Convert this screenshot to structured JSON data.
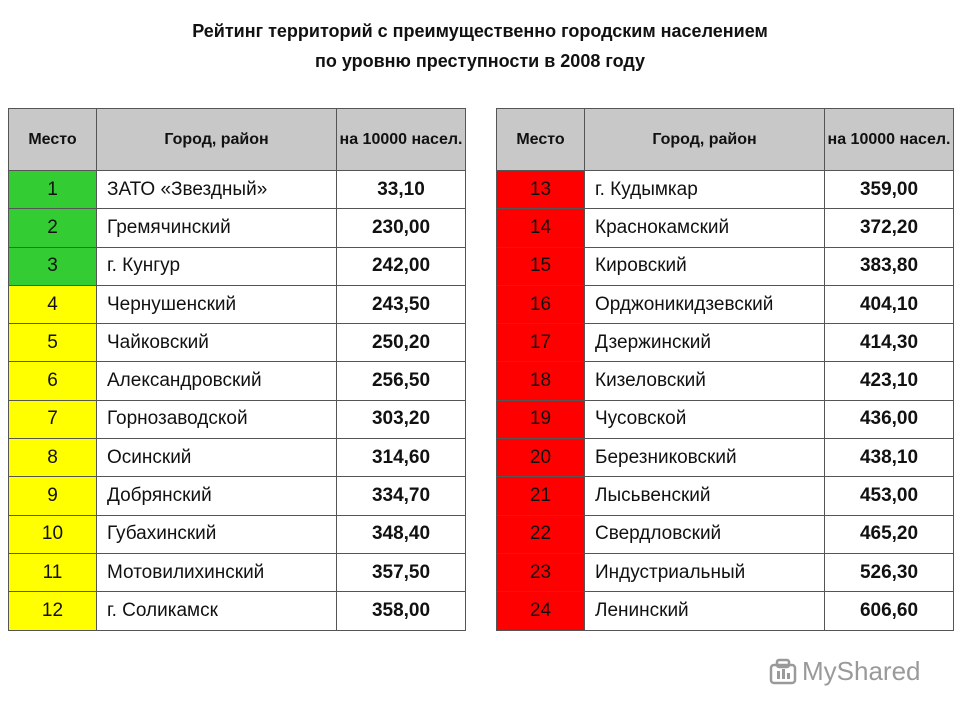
{
  "header": {
    "title_lines": [
      "Рейтинг территорий с преимущественно городским населением",
      "по уровню преступности в 2008 году"
    ]
  },
  "tables": [
    {
      "columns": [
        "Место",
        "Город, район",
        "на 10000 насел."
      ],
      "row_colors": [
        "#33cc33",
        "#33cc33",
        "#33cc33",
        "#ffff00",
        "#ffff00",
        "#ffff00",
        "#ffff00",
        "#ffff00",
        "#ffff00",
        "#ffff00",
        "#ffff00",
        "#ffff00"
      ],
      "rows": [
        [
          "1",
          "ЗАТО «Звездный»",
          "33,10"
        ],
        [
          "2",
          "Гремячинский",
          "230,00"
        ],
        [
          "3",
          "г. Кунгур",
          "242,00"
        ],
        [
          "4",
          "Чернушенский",
          "243,50"
        ],
        [
          "5",
          "Чайковский",
          "250,20"
        ],
        [
          "6",
          "Александровский",
          "256,50"
        ],
        [
          "7",
          "Горнозаводской",
          "303,20"
        ],
        [
          "8",
          "Осинский",
          "314,60"
        ],
        [
          "9",
          "Добрянский",
          "334,70"
        ],
        [
          "10",
          "Губахинский",
          "348,40"
        ],
        [
          "11",
          "Мотовилихинский",
          "357,50"
        ],
        [
          "12",
          "г. Соликамск",
          "358,00"
        ]
      ]
    },
    {
      "columns": [
        "Место",
        "Город, район",
        "на 10000 насел."
      ],
      "row_colors": [
        "#ff0000",
        "#ff0000",
        "#ff0000",
        "#ff0000",
        "#ff0000",
        "#ff0000",
        "#ff0000",
        "#ff0000",
        "#ff0000",
        "#ff0000",
        "#ff0000",
        "#ff0000"
      ],
      "rows": [
        [
          "13",
          "г. Кудымкар",
          "359,00"
        ],
        [
          "14",
          "Краснокамский",
          "372,20"
        ],
        [
          "15",
          "Кировский",
          "383,80"
        ],
        [
          "16",
          "Орджоникидзевский",
          "404,10"
        ],
        [
          "17",
          "Дзержинский",
          "414,30"
        ],
        [
          "18",
          "Кизеловский",
          "423,10"
        ],
        [
          "19",
          "Чусовской",
          "436,00"
        ],
        [
          "20",
          "Березниковский",
          "438,10"
        ],
        [
          "21",
          "Лысьвенский",
          "453,00"
        ],
        [
          "22",
          "Свердловский",
          "465,20"
        ],
        [
          "23",
          "Индустриальный",
          "526,30"
        ],
        [
          "24",
          "Ленинский",
          "606,60"
        ]
      ]
    }
  ],
  "watermark": "MyShared"
}
